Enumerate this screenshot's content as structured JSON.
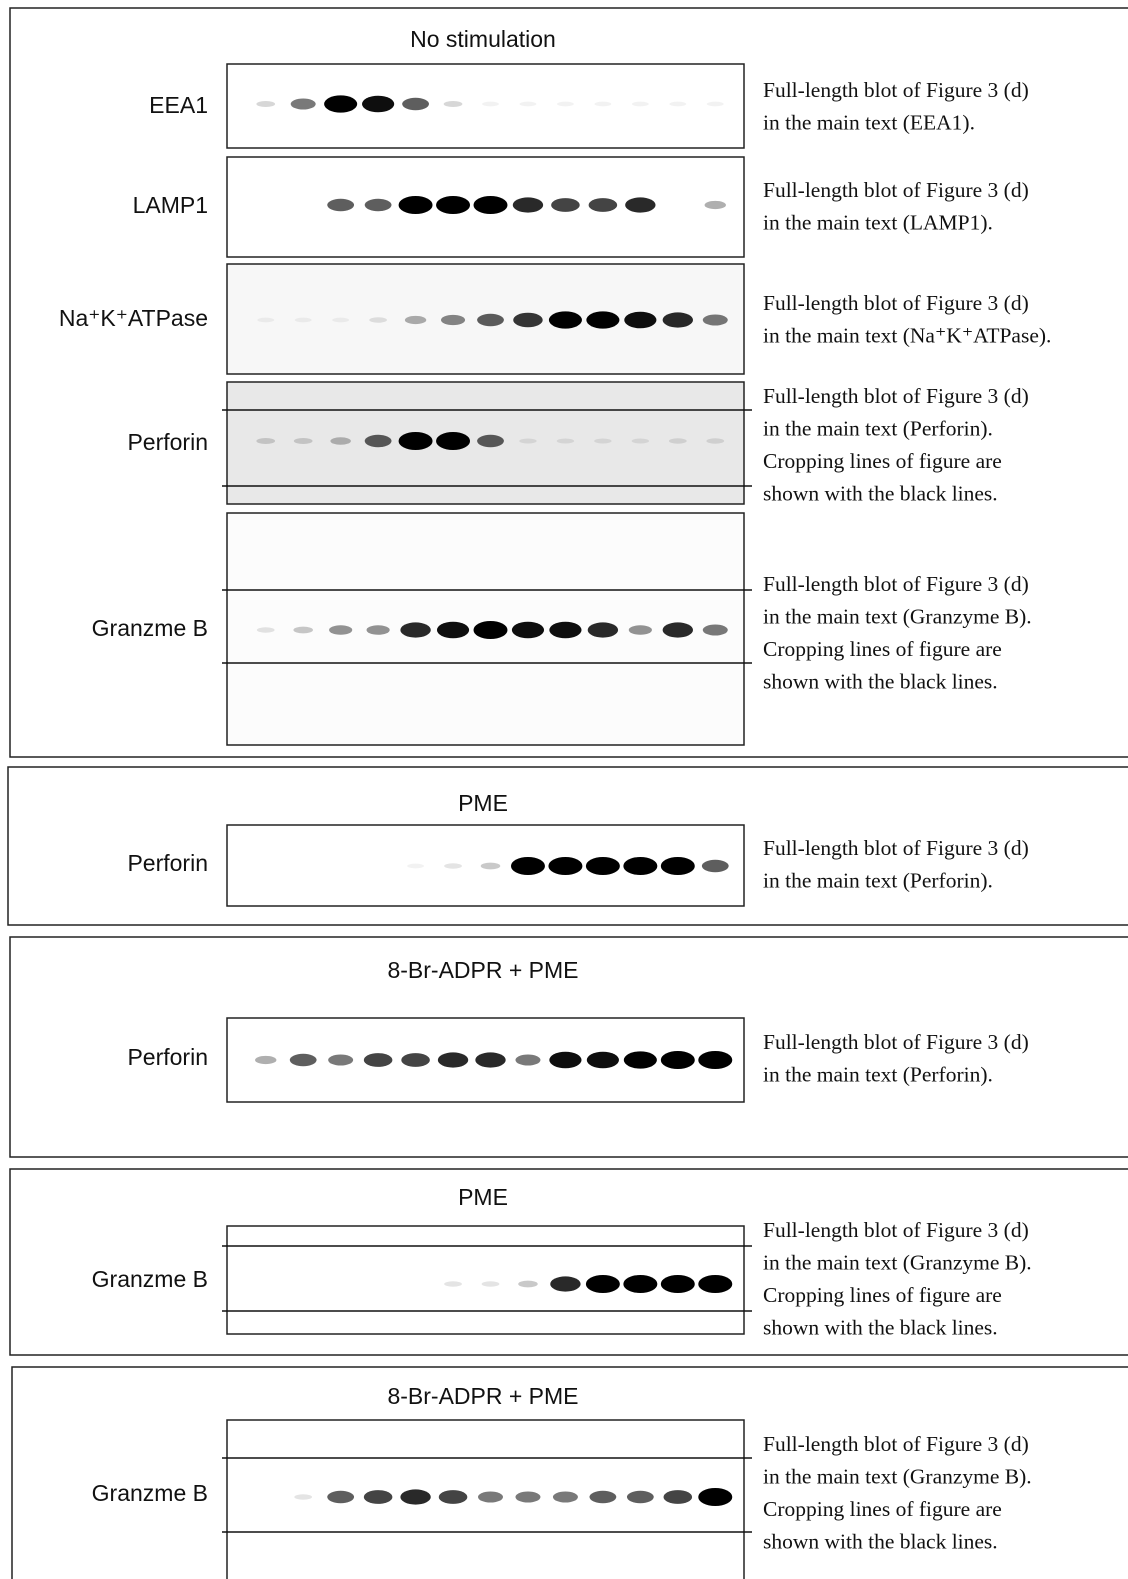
{
  "panels": [
    {
      "title": "No stimulation",
      "rows": [
        {
          "label": "EEA1",
          "caption": [
            "Full-length blot of Figure 3 (d)",
            "in the main text (EEA1)."
          ]
        },
        {
          "label": "LAMP1",
          "caption": [
            "Full-length blot of Figure 3 (d)",
            "in the main text (LAMP1)."
          ]
        },
        {
          "label": "Na⁺K⁺ATPase",
          "caption": [
            "Full-length blot of Figure 3 (d)",
            "in the main text (Na⁺K⁺ATPase)."
          ]
        },
        {
          "label": "Perforin",
          "caption": [
            "Full-length blot of Figure 3 (d)",
            "in the main text (Perforin).",
            "Cropping lines of figure are",
            "shown with the black lines."
          ]
        },
        {
          "label": "Granzme B",
          "caption": [
            "Full-length blot of Figure 3 (d)",
            "in the main text (Granzyme B).",
            "Cropping lines of figure are",
            "shown with the black lines."
          ]
        }
      ]
    },
    {
      "title": "PME",
      "rows": [
        {
          "label": "Perforin",
          "caption": [
            "Full-length blot of Figure 3 (d)",
            "in the main text (Perforin)."
          ]
        }
      ]
    },
    {
      "title": "8-Br-ADPR + PME",
      "rows": [
        {
          "label": "Perforin",
          "caption": [
            "Full-length blot of Figure 3 (d)",
            "in the main text (Perforin)."
          ]
        }
      ]
    },
    {
      "title": "PME",
      "rows": [
        {
          "label": "Granzme B",
          "caption": [
            "Full-length blot of Figure 3 (d)",
            "in the main text (Granzyme B).",
            "Cropping lines of figure are",
            "shown with the black lines."
          ]
        }
      ]
    },
    {
      "title": "8-Br-ADPR + PME",
      "rows": [
        {
          "label": "Granzme B",
          "caption": [
            "Full-length blot of Figure 3 (d)",
            "in the main text (Granzyme B).",
            "Cropping lines of figure are",
            "shown with the black lines."
          ]
        }
      ]
    }
  ]
}
